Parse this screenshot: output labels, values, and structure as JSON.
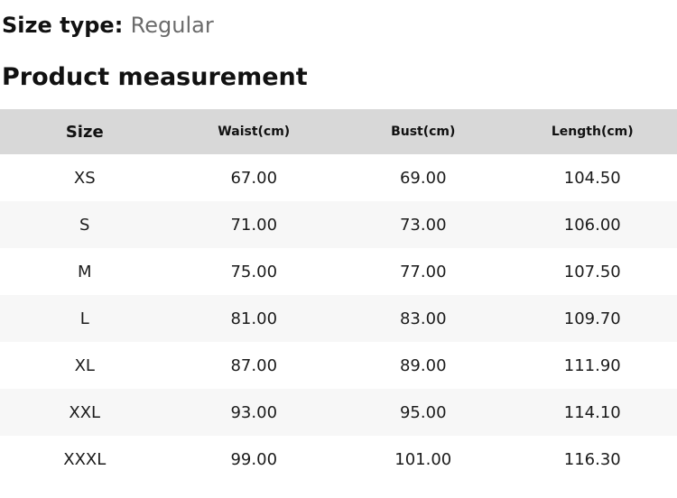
{
  "size_type": {
    "label": "Size type:",
    "value": "Regular"
  },
  "section_title": "Product measurement",
  "table": {
    "columns": [
      "Size",
      "Waist(cm)",
      "Bust(cm)",
      "Length(cm)"
    ],
    "rows": [
      [
        "XS",
        "67.00",
        "69.00",
        "104.50"
      ],
      [
        "S",
        "71.00",
        "73.00",
        "106.00"
      ],
      [
        "M",
        "75.00",
        "77.00",
        "107.50"
      ],
      [
        "L",
        "81.00",
        "83.00",
        "109.70"
      ],
      [
        "XL",
        "87.00",
        "89.00",
        "111.90"
      ],
      [
        "XXL",
        "93.00",
        "95.00",
        "114.10"
      ],
      [
        "XXXL",
        "99.00",
        "101.00",
        "116.30"
      ]
    ]
  },
  "colors": {
    "header_bg": "#d8d8d8",
    "alt_row_bg": "#f7f7f7",
    "muted_text": "#6b6b6b"
  }
}
